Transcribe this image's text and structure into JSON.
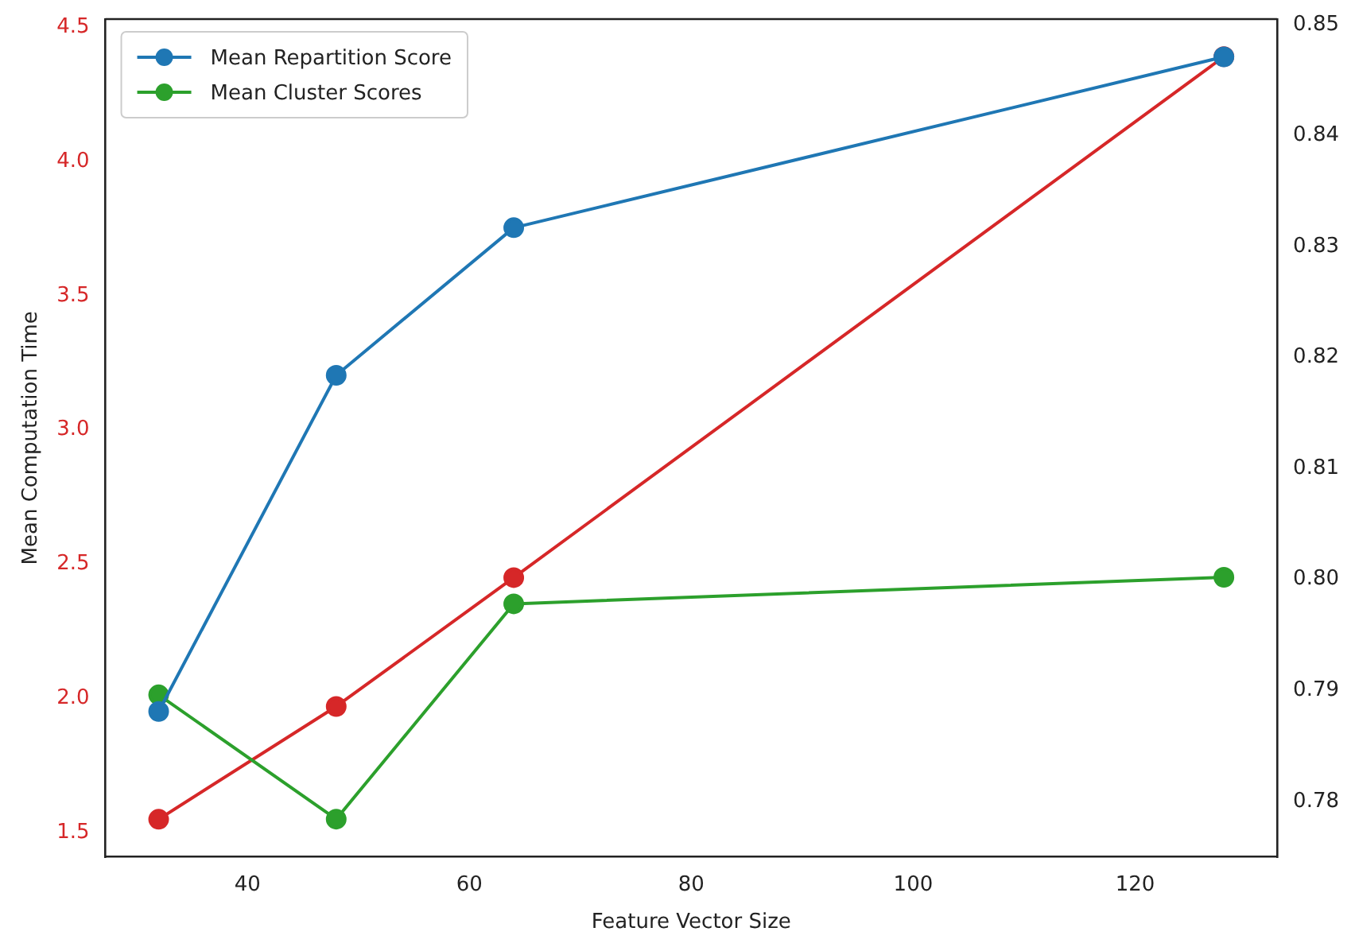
{
  "chart_data": {
    "type": "line",
    "xlabel": "Feature Vector Size",
    "ylabel": "Mean Computation Time",
    "x": [
      32,
      48,
      64,
      128
    ],
    "series": [
      {
        "name": "Mean Repartition Score",
        "color": "#1f77b4",
        "axis": "y2",
        "values": [
          0.7881,
          0.8184,
          0.8317,
          0.8471
        ]
      },
      {
        "name": "Mean Cluster Scores",
        "color": "#2ca02c",
        "axis": "y2",
        "values": [
          0.7896,
          0.7784,
          0.7978,
          0.8002
        ]
      },
      {
        "color": "#d62728",
        "axis": "y",
        "values": [
          1.55,
          1.97,
          2.45,
          4.39
        ]
      }
    ],
    "xlim": [
      27.2,
      132.8
    ],
    "xticks": [
      40,
      60,
      80,
      100,
      120
    ],
    "ylim": [
      1.41,
      4.53
    ],
    "yticks": [
      1.5,
      {
        "value": 2,
        "label": "2.0"
      },
      2.5,
      {
        "value": 3,
        "label": "3.0"
      },
      3.5,
      {
        "value": 4,
        "label": "4.0"
      },
      4.5
    ],
    "y2lim": [
      0.775,
      0.8505
    ],
    "y2ticks": [
      0.78,
      0.79,
      {
        "value": 0.8,
        "label": "0.80"
      },
      0.81,
      0.82,
      0.83,
      0.84,
      0.85
    ],
    "legend": "top left",
    "grid": false,
    "marker": "circle",
    "line_style": "solid"
  }
}
